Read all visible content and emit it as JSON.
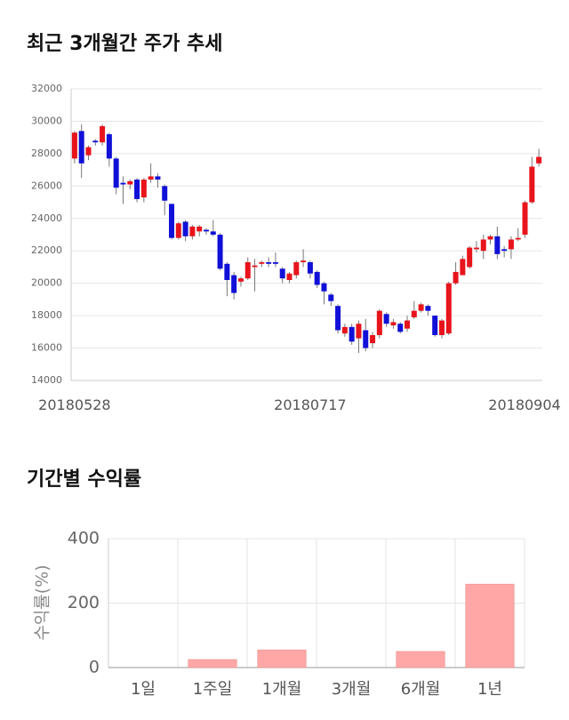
{
  "chart_data": [
    {
      "type": "candlestick",
      "title": "최근 3개월간 주가 추세",
      "categories": [
        "20180528",
        null,
        null,
        null,
        null,
        null,
        null,
        null,
        null,
        null,
        null,
        null,
        null,
        null,
        null,
        null,
        null,
        null,
        null,
        null,
        null,
        null,
        null,
        null,
        null,
        null,
        null,
        null,
        null,
        null,
        null,
        null,
        null,
        null,
        "20180717",
        null,
        null,
        null,
        null,
        null,
        null,
        null,
        null,
        null,
        null,
        null,
        null,
        null,
        null,
        null,
        null,
        null,
        null,
        null,
        null,
        null,
        null,
        null,
        null,
        null,
        null,
        null,
        null,
        null,
        null,
        null,
        null,
        "20180904"
      ],
      "open": [
        27700,
        29400,
        27900,
        28800,
        28700,
        29200,
        27700,
        26200,
        26100,
        26400,
        25300,
        26400,
        26600,
        26000,
        24900,
        22800,
        23800,
        22900,
        23200,
        23300,
        23200,
        23000,
        21200,
        20500,
        20100,
        20300,
        21000,
        21200,
        21300,
        21300,
        20900,
        20200,
        20500,
        21300,
        21300,
        20700,
        20000,
        19300,
        18600,
        16900,
        17300,
        16600,
        17100,
        16300,
        16800,
        18100,
        17400,
        17500,
        17200,
        17900,
        18300,
        18600,
        18000,
        16800,
        16900,
        20000,
        20500,
        21000,
        22100,
        22000,
        22700,
        22900,
        22100,
        22100,
        22700,
        23000,
        25000,
        27400
      ],
      "high": [
        29400,
        29800,
        28500,
        28900,
        29800,
        29300,
        27800,
        26600,
        26400,
        26500,
        26500,
        27400,
        26800,
        26100,
        24900,
        23800,
        23900,
        23600,
        23600,
        23400,
        23900,
        23100,
        21300,
        20700,
        20400,
        21600,
        21500,
        21400,
        21600,
        21900,
        21000,
        20700,
        21400,
        22100,
        21400,
        20800,
        20100,
        19400,
        18700,
        17500,
        17500,
        17700,
        17800,
        17000,
        18400,
        18200,
        17800,
        17600,
        18000,
        18900,
        18800,
        18700,
        18000,
        17800,
        20100,
        21300,
        21700,
        22300,
        22600,
        23000,
        23000,
        23500,
        22300,
        22900,
        23400,
        25100,
        27800,
        28300
      ],
      "low": [
        27400,
        26500,
        27600,
        28500,
        28500,
        27200,
        25500,
        24900,
        25800,
        25000,
        25000,
        26200,
        25900,
        24200,
        22700,
        22700,
        22600,
        22700,
        22900,
        23000,
        22900,
        20800,
        19200,
        19000,
        19800,
        20200,
        19500,
        21000,
        21000,
        21000,
        20000,
        20000,
        20300,
        21000,
        20300,
        19700,
        18700,
        18600,
        16900,
        16700,
        16200,
        15700,
        15800,
        16000,
        16600,
        17300,
        17200,
        16900,
        17000,
        17800,
        18200,
        18000,
        16700,
        16600,
        16800,
        19900,
        20500,
        20900,
        21900,
        21500,
        22400,
        21500,
        21600,
        21500,
        22600,
        22800,
        24900,
        27200
      ],
      "close": [
        29300,
        27400,
        28400,
        28700,
        29700,
        27700,
        25900,
        26100,
        26300,
        25200,
        26400,
        26600,
        26400,
        25100,
        22800,
        23700,
        22900,
        23500,
        23500,
        23200,
        23000,
        20900,
        20200,
        19400,
        20300,
        21300,
        21100,
        21300,
        21200,
        21200,
        20300,
        20600,
        21300,
        21400,
        20600,
        19900,
        19500,
        18900,
        17100,
        17300,
        16400,
        17500,
        16000,
        16800,
        18300,
        17500,
        17600,
        17000,
        17700,
        18300,
        18700,
        18300,
        16800,
        17700,
        20000,
        20700,
        21500,
        22200,
        22200,
        22700,
        22900,
        21800,
        22000,
        22700,
        22800,
        25000,
        27200,
        27800
      ],
      "up_color": "#e8141c",
      "down_color": "#1010d8",
      "ylim": [
        14000,
        32000
      ],
      "yticks": [
        14000,
        16000,
        18000,
        20000,
        22000,
        24000,
        26000,
        28000,
        30000,
        32000
      ],
      "grid": true
    },
    {
      "type": "bar",
      "title": "기간별 수익률",
      "y_label": "수익률(%)",
      "categories": [
        "1일",
        "1주일",
        "1개월",
        "3개월",
        "6개월",
        "1년"
      ],
      "values": [
        0,
        25,
        55,
        0,
        50,
        259
      ],
      "color": "#ffa6a6",
      "ylim": [
        0,
        400
      ],
      "yticks": [
        0,
        200,
        400
      ],
      "grid": true
    }
  ]
}
